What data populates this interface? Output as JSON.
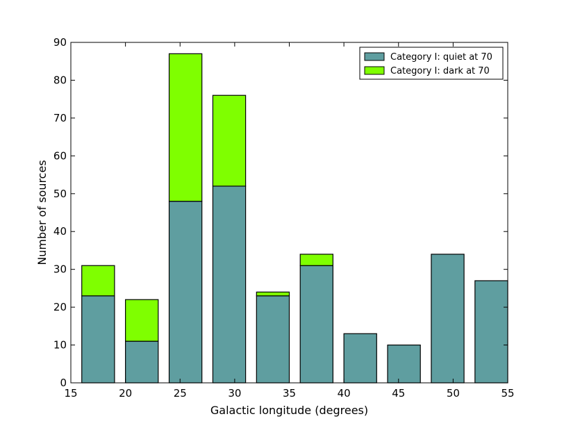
{
  "chart_data": {
    "type": "bar",
    "stacked": true,
    "xlabel": "Galactic longitude (degrees)",
    "ylabel": "Number of sources",
    "xlim": [
      15,
      55
    ],
    "ylim": [
      0,
      90
    ],
    "xticks": [
      15,
      20,
      25,
      30,
      35,
      40,
      45,
      50,
      55
    ],
    "yticks": [
      0,
      10,
      20,
      30,
      40,
      50,
      60,
      70,
      80,
      90
    ],
    "grid": false,
    "legend_position": "top-right",
    "bins": [
      {
        "start": 16,
        "end": 19
      },
      {
        "start": 20,
        "end": 23
      },
      {
        "start": 24,
        "end": 27
      },
      {
        "start": 28,
        "end": 31
      },
      {
        "start": 32,
        "end": 35
      },
      {
        "start": 36,
        "end": 39
      },
      {
        "start": 40,
        "end": 43
      },
      {
        "start": 44,
        "end": 47
      },
      {
        "start": 48,
        "end": 51
      },
      {
        "start": 52,
        "end": 55
      }
    ],
    "series": [
      {
        "name": "Category I: quiet at 70",
        "color": "#5f9ea0",
        "values": [
          23,
          11,
          48,
          52,
          23,
          31,
          13,
          10,
          34,
          27
        ]
      },
      {
        "name": "Category I: dark at 70",
        "color": "#7fff00",
        "values": [
          8,
          11,
          39,
          24,
          1,
          3,
          0,
          0,
          0,
          0
        ]
      }
    ]
  }
}
